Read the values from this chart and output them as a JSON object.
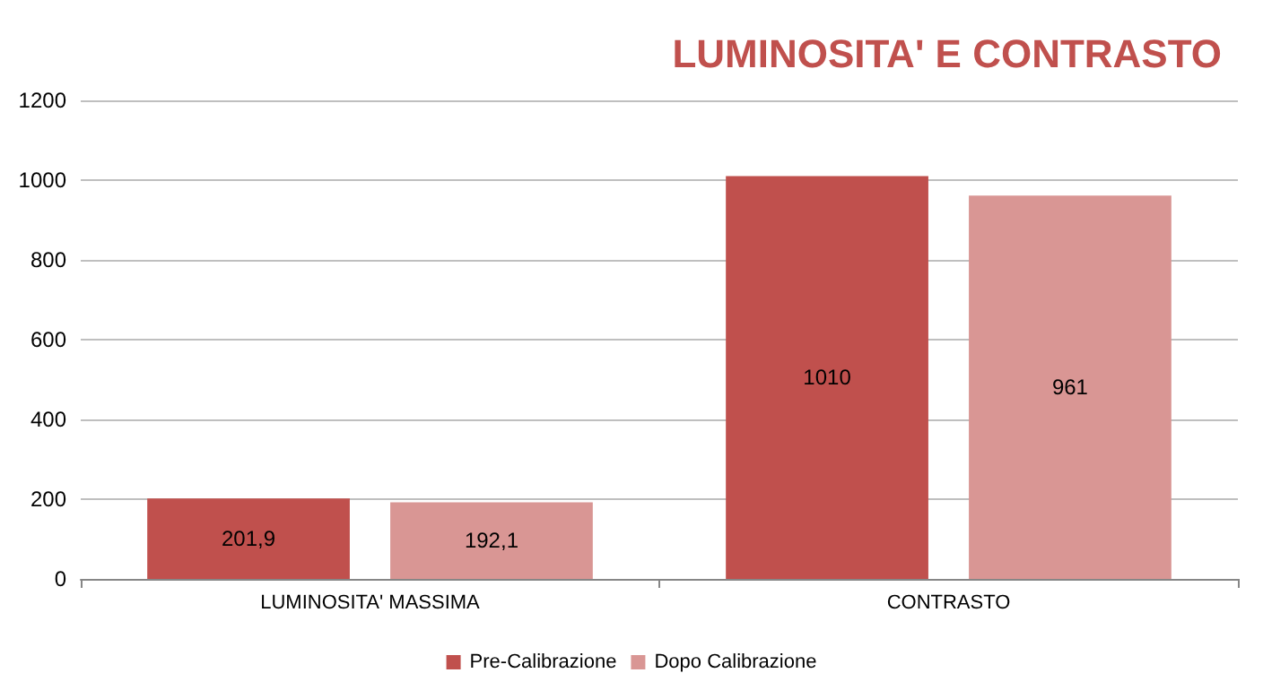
{
  "chart_data": {
    "type": "bar",
    "title": "LUMINOSITA' E CONTRASTO",
    "categories": [
      "LUMINOSITA' MASSIMA",
      "CONTRASTO"
    ],
    "series": [
      {
        "name": "Pre-Calibrazione",
        "color": "#c0504d",
        "values": [
          201.9,
          1010
        ],
        "value_labels": [
          "201,9",
          "1010"
        ]
      },
      {
        "name": "Dopo Calibrazione",
        "color": "#d99694",
        "values": [
          192.1,
          961
        ],
        "value_labels": [
          "192,1",
          "961"
        ]
      }
    ],
    "ylim": [
      0,
      1200
    ],
    "yticks": [
      0,
      200,
      400,
      600,
      800,
      1000,
      1200
    ],
    "grid": "y",
    "legend": "bottom"
  }
}
